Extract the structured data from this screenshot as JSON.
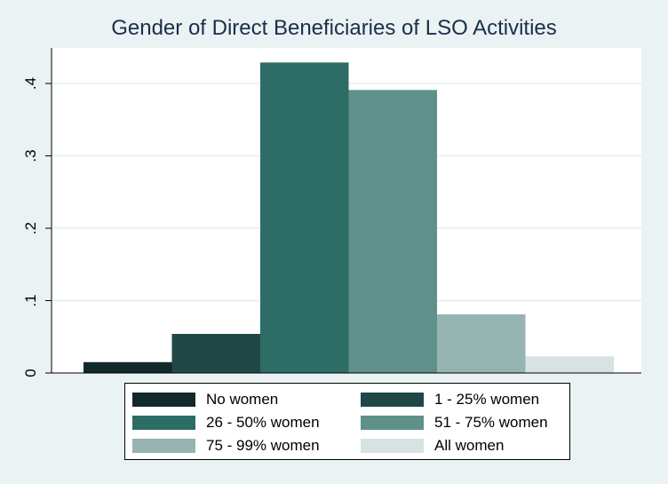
{
  "chart_data": {
    "type": "bar",
    "title": "Gender of Direct Beneficiaries of LSO Activities",
    "xlabel": "",
    "ylabel": "",
    "ylim": [
      0,
      0.43
    ],
    "yticks": [
      0,
      0.1,
      0.2,
      0.3,
      0.4
    ],
    "ytick_labels": [
      "0",
      ".1",
      ".2",
      ".3",
      ".4"
    ],
    "grid": true,
    "legend_position": "bottom",
    "series": [
      {
        "name": "No women",
        "value": 0.015,
        "color": "#13282a"
      },
      {
        "name": "1 - 25% women",
        "value": 0.054,
        "color": "#1f4746"
      },
      {
        "name": "26 - 50% women",
        "value": 0.429,
        "color": "#2d6d66"
      },
      {
        "name": "51 - 75% women",
        "value": 0.391,
        "color": "#5f918a"
      },
      {
        "name": "75 - 99% women",
        "value": 0.081,
        "color": "#96b4b1"
      },
      {
        "name": "All women",
        "value": 0.023,
        "color": "#d7e3e2"
      }
    ]
  }
}
